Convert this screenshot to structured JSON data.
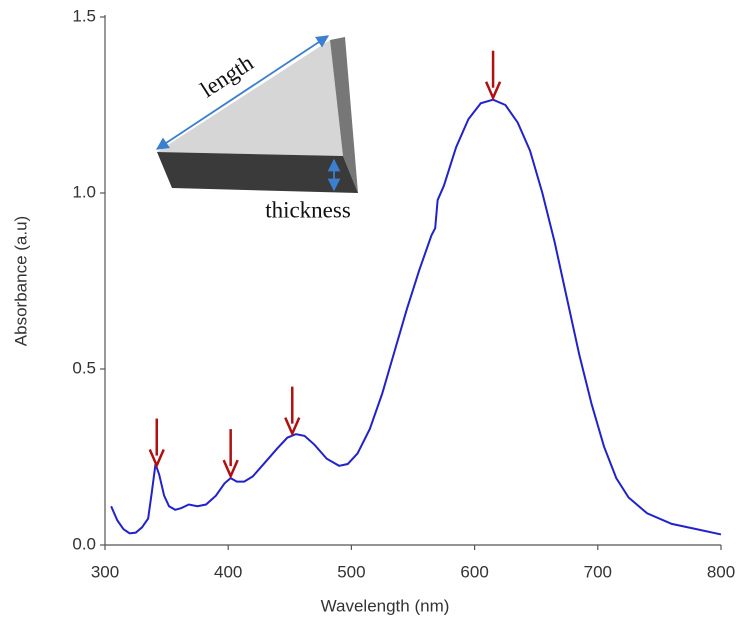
{
  "chart_data": {
    "type": "line",
    "x_label": "Wavelength (nm)",
    "y_label": "Absorbance (a.u)",
    "xlim": [
      300,
      800
    ],
    "ylim": [
      0,
      1.5
    ],
    "xticks": [
      300,
      400,
      500,
      600,
      700,
      800
    ],
    "yticks": [
      {
        "value": 0,
        "label": "0.0"
      },
      0.5,
      {
        "value": 1,
        "label": "1.0"
      },
      1.5
    ],
    "grid": false,
    "series": [
      {
        "color": "#2222cc",
        "x": [
          305,
          310,
          315,
          320,
          325,
          330,
          335,
          338,
          341,
          344,
          348,
          352,
          357,
          362,
          368,
          375,
          382,
          390,
          397,
          402,
          407,
          413,
          420,
          430,
          440,
          448,
          455,
          462,
          470,
          480,
          490,
          497,
          505,
          515,
          525,
          535,
          545,
          555,
          565,
          568,
          570,
          575,
          585,
          595,
          605,
          615,
          625,
          635,
          645,
          655,
          665,
          675,
          685,
          695,
          705,
          715,
          725,
          740,
          760,
          780,
          800
        ],
        "values": [
          0.11,
          0.07,
          0.045,
          0.033,
          0.035,
          0.05,
          0.075,
          0.15,
          0.23,
          0.2,
          0.14,
          0.11,
          0.1,
          0.105,
          0.115,
          0.11,
          0.115,
          0.14,
          0.175,
          0.19,
          0.18,
          0.18,
          0.195,
          0.235,
          0.275,
          0.305,
          0.315,
          0.31,
          0.285,
          0.245,
          0.225,
          0.23,
          0.26,
          0.33,
          0.43,
          0.55,
          0.67,
          0.78,
          0.88,
          0.9,
          0.98,
          1.02,
          1.13,
          1.21,
          1.255,
          1.265,
          1.25,
          1.2,
          1.12,
          1.0,
          0.86,
          0.7,
          0.54,
          0.4,
          0.28,
          0.19,
          0.135,
          0.09,
          0.06,
          0.045,
          0.03
        ]
      }
    ],
    "peak_markers": {
      "color": "#b01010",
      "x": [
        342,
        402,
        452,
        615
      ]
    },
    "annotations": [
      "length",
      "thickness"
    ]
  }
}
